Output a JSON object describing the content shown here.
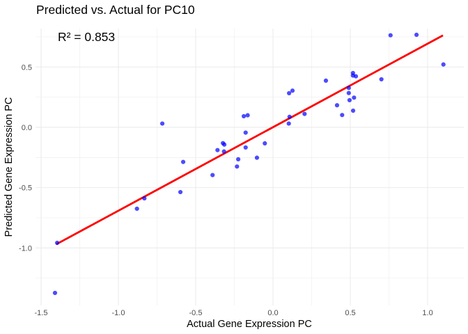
{
  "chart_data": {
    "type": "scatter",
    "title": "Predicted vs. Actual for PC10",
    "xlabel": "Actual Gene Expression PC",
    "ylabel": "Predicted Gene Expression PC",
    "xlim": [
      -1.536,
      1.234
    ],
    "ylim": [
      -1.477,
      0.819
    ],
    "x_ticks": [
      -1.5,
      -1.0,
      -0.5,
      0.0,
      0.5,
      1.0
    ],
    "x_tick_labels": [
      "-1.5",
      "-1.0",
      "-0.5",
      "0.0",
      "0.5",
      "1.0"
    ],
    "x_minor_ticks": [
      -1.25,
      -0.75,
      -0.25,
      0.25,
      0.75
    ],
    "y_ticks": [
      -1.0,
      -0.5,
      0.0,
      0.5
    ],
    "y_tick_labels": [
      "-1.0",
      "-0.5",
      "0.0",
      "0.5"
    ],
    "y_minor_ticks": [
      -1.25,
      -0.75,
      -0.25,
      0.25,
      0.75
    ],
    "grid": true,
    "legend": null,
    "colors": {
      "points": "#0000ff",
      "fit_line": "#ff0000"
    },
    "series": [
      {
        "name": "observations",
        "kind": "points",
        "x": [
          -1.396,
          -1.41,
          -0.88,
          -0.832,
          -0.716,
          -0.599,
          -0.581,
          -0.391,
          -0.359,
          -0.324,
          -0.315,
          -0.317,
          -0.233,
          -0.225,
          -0.189,
          -0.164,
          -0.177,
          -0.177,
          -0.104,
          -0.053,
          0.104,
          0.126,
          0.107,
          0.102,
          0.204,
          0.342,
          0.414,
          0.447,
          0.49,
          0.49,
          0.495,
          0.517,
          0.517,
          0.536,
          0.524,
          0.518,
          0.701,
          0.76,
          0.928,
          1.102
        ],
        "y": [
          -0.958,
          -1.373,
          -0.675,
          -0.589,
          0.031,
          -0.537,
          -0.287,
          -0.396,
          -0.189,
          -0.131,
          -0.143,
          -0.2,
          -0.325,
          -0.265,
          0.092,
          0.1,
          -0.044,
          -0.167,
          -0.252,
          -0.133,
          0.283,
          0.304,
          0.087,
          0.031,
          0.111,
          0.387,
          0.183,
          0.102,
          0.327,
          0.284,
          0.225,
          0.45,
          0.429,
          0.423,
          0.246,
          0.138,
          0.398,
          0.763,
          0.767,
          0.521
        ]
      },
      {
        "name": "linear fit",
        "kind": "line",
        "x": [
          -1.401,
          1.099
        ],
        "y": [
          -0.969,
          0.762
        ]
      }
    ],
    "annotations": [
      {
        "text": "R² = 0.853",
        "x": -1.207,
        "y": 0.75
      }
    ]
  }
}
